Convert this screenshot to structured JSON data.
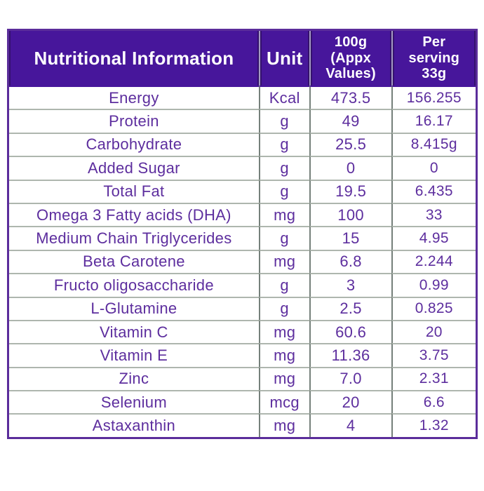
{
  "colors": {
    "header_bg": "#47169B",
    "header_text": "#FFFFFF",
    "body_text": "#5D2E9E",
    "outer_border": "#5B2D9B",
    "row_line": "#AEB6AE",
    "column_line": "#75807A"
  },
  "table": {
    "columns": [
      {
        "label": "Nutritional Information",
        "lines": [
          "Nutritional Information"
        ]
      },
      {
        "label": "Unit",
        "lines": [
          "Unit"
        ]
      },
      {
        "label": "100g (Appx Values)",
        "lines": [
          "100g",
          "(Appx",
          "Values)"
        ]
      },
      {
        "label": "Per serving 33g",
        "lines": [
          "Per",
          "serving",
          "33g"
        ]
      }
    ],
    "rows": [
      {
        "name": "Energy",
        "unit": "Kcal",
        "per_100g": "473.5",
        "per_serving": "156.255"
      },
      {
        "name": "Protein",
        "unit": "g",
        "per_100g": "49",
        "per_serving": "16.17"
      },
      {
        "name": "Carbohydrate",
        "unit": "g",
        "per_100g": "25.5",
        "per_serving": "8.415g"
      },
      {
        "name": "Added Sugar",
        "unit": "g",
        "per_100g": "0",
        "per_serving": "0"
      },
      {
        "name": "Total Fat",
        "unit": "g",
        "per_100g": "19.5",
        "per_serving": "6.435"
      },
      {
        "name": "Omega 3 Fatty acids (DHA)",
        "unit": "mg",
        "per_100g": "100",
        "per_serving": "33"
      },
      {
        "name": "Medium Chain Triglycerides",
        "unit": "g",
        "per_100g": "15",
        "per_serving": "4.95"
      },
      {
        "name": "Beta Carotene",
        "unit": "mg",
        "per_100g": "6.8",
        "per_serving": "2.244"
      },
      {
        "name": "Fructo oligosaccharide",
        "unit": "g",
        "per_100g": "3",
        "per_serving": "0.99"
      },
      {
        "name": "L-Glutamine",
        "unit": "g",
        "per_100g": "2.5",
        "per_serving": "0.825"
      },
      {
        "name": "Vitamin C",
        "unit": "mg",
        "per_100g": "60.6",
        "per_serving": "20"
      },
      {
        "name": "Vitamin E",
        "unit": "mg",
        "per_100g": "11.36",
        "per_serving": "3.75"
      },
      {
        "name": "Zinc",
        "unit": "mg",
        "per_100g": "7.0",
        "per_serving": "2.31"
      },
      {
        "name": "Selenium",
        "unit": "mcg",
        "per_100g": "20",
        "per_serving": "6.6"
      },
      {
        "name": "Astaxanthin",
        "unit": "mg",
        "per_100g": "4",
        "per_serving": "1.32"
      }
    ]
  }
}
